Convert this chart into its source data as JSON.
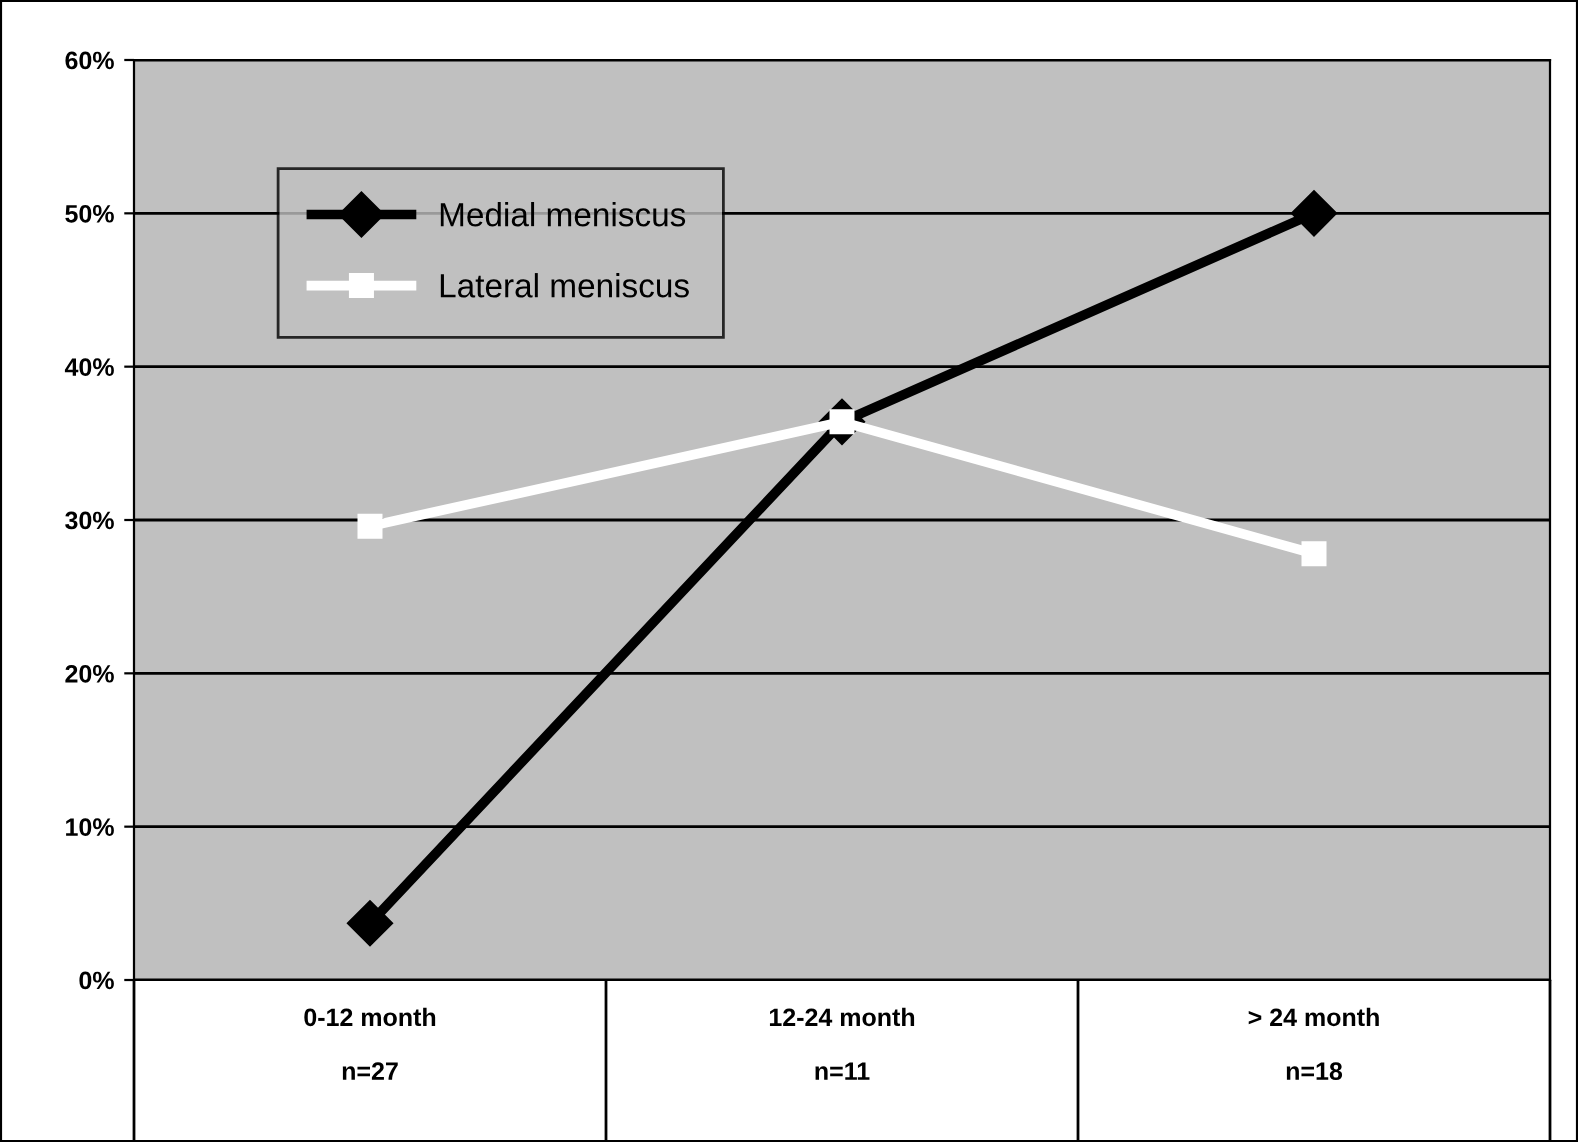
{
  "chart_data": {
    "type": "line",
    "categories": [
      "0-12 month\n\nn=27",
      "12-24 month\n\nn=11",
      "> 24 month\n\nn=18"
    ],
    "series": [
      {
        "name": "Medial meniscus",
        "color": "#000000",
        "values": [
          3.7,
          36.4,
          50.0
        ],
        "marker": "diamond"
      },
      {
        "name": "Lateral meniscus",
        "color": "#ffffff",
        "values": [
          29.6,
          36.4,
          27.8
        ],
        "marker": "square"
      }
    ],
    "ylim": [
      0,
      60
    ],
    "yticks": [
      {
        "value": 0,
        "label": "0%"
      },
      {
        "value": 10,
        "label": "10%"
      },
      {
        "value": 20,
        "label": "20%"
      },
      {
        "value": 30,
        "label": "30%"
      },
      {
        "value": 40,
        "label": "40%"
      },
      {
        "value": 50,
        "label": "50%"
      },
      {
        "value": 60,
        "label": "60%"
      }
    ],
    "grid": "y",
    "legend": "top left",
    "line_style": "solid"
  }
}
